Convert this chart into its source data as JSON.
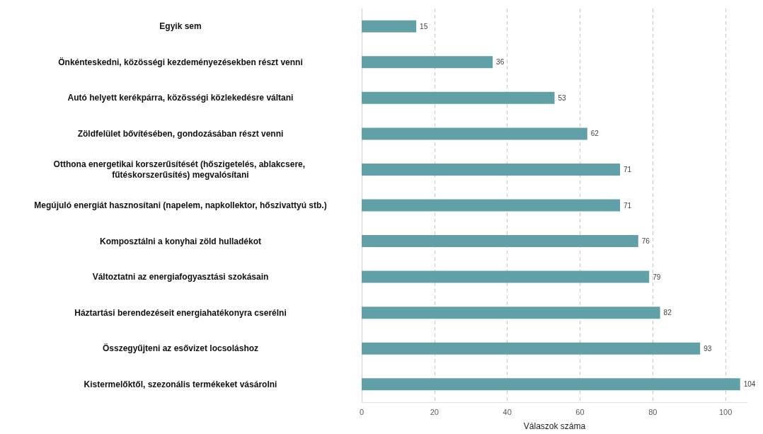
{
  "chart_data": {
    "type": "bar",
    "orientation": "horizontal",
    "xlabel": "Válaszok száma",
    "categories": [
      "Egyik sem",
      "Önkénteskedni, közösségi kezdeményezésekben részt venni",
      "Autó helyett kerékpárra, közösségi közlekedésre váltani",
      "Zöldfelület bővítésében, gondozásában részt venni",
      "Otthona energetikai korszerűsítését (hőszigetelés, ablakcsere, fűtéskorszerűsítés) megvalósítani",
      "Megújuló energiát hasznosítani (napelem, napkollektor, hőszivattyú stb.)",
      "Komposztálni a konyhai zöld hulladékot",
      "Változtatni az energiafogyasztási szokásain",
      "Háztartási berendezéseit energiahatékonyra cserélni",
      "Összegyűjteni az esővizet locsoláshoz",
      "Kistermelőktől, szezonális termékeket vásárolni"
    ],
    "values": [
      15,
      36,
      53,
      62,
      71,
      71,
      76,
      79,
      82,
      93,
      104
    ],
    "color": "#62a0a8",
    "xlim": [
      0,
      106
    ],
    "xticks": [
      0,
      20,
      40,
      60,
      80,
      100
    ],
    "grid": "x",
    "data_labels": true
  }
}
